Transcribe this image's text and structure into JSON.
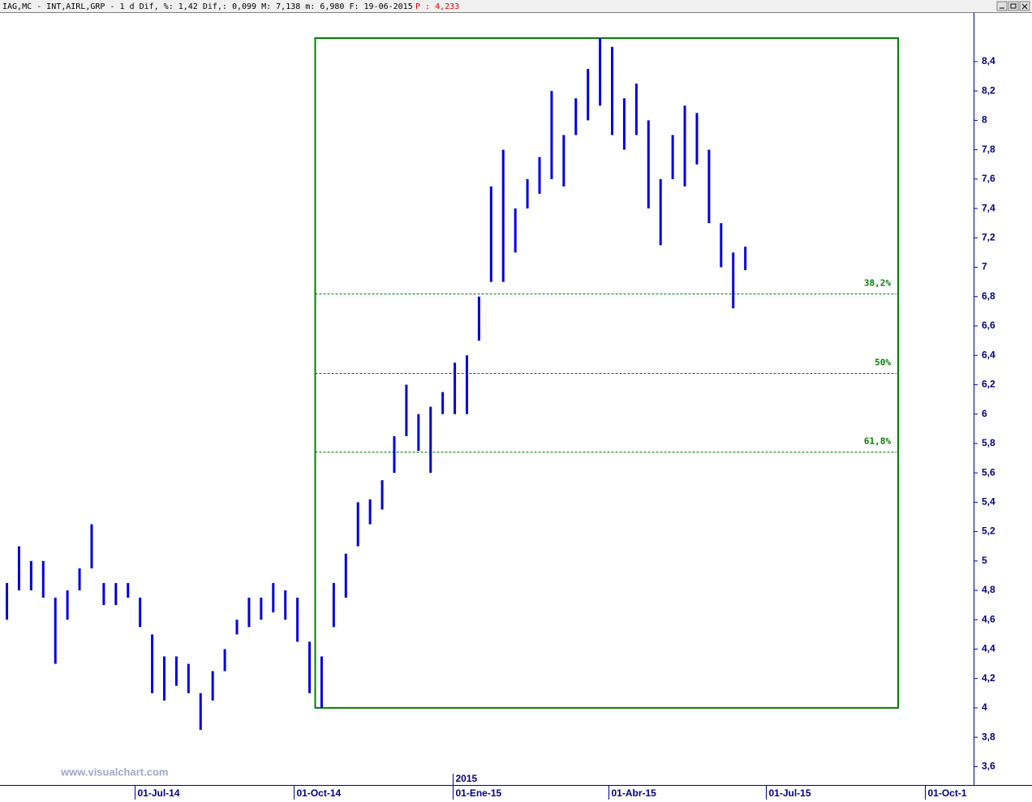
{
  "header": {
    "text": "IAG,MC - INT,AIRL,GRP -  1 d Dif, %: 1,42 Dif,: 0,099 M: 7,138 m: 6,980 F: 19-06-2015",
    "price": "P : 4,233"
  },
  "watermark": "www.visualchart.com",
  "chart_data": {
    "type": "hilo",
    "color": "#0000e0",
    "x": [
      "2014-04-18",
      "2014-04-25",
      "2014-05-02",
      "2014-05-09",
      "2014-05-16",
      "2014-05-23",
      "2014-05-30",
      "2014-06-06",
      "2014-06-13",
      "2014-06-20",
      "2014-06-27",
      "2014-07-04",
      "2014-07-11",
      "2014-07-18",
      "2014-07-25",
      "2014-08-01",
      "2014-08-08",
      "2014-08-15",
      "2014-08-22",
      "2014-08-29",
      "2014-09-05",
      "2014-09-12",
      "2014-09-19",
      "2014-09-26",
      "2014-10-03",
      "2014-10-10",
      "2014-10-17",
      "2014-10-24",
      "2014-10-31",
      "2014-11-07",
      "2014-11-14",
      "2014-11-21",
      "2014-11-28",
      "2014-12-05",
      "2014-12-12",
      "2014-12-19",
      "2014-12-26",
      "2015-01-02",
      "2015-01-09",
      "2015-01-16",
      "2015-01-23",
      "2015-01-30",
      "2015-02-06",
      "2015-02-13",
      "2015-02-20",
      "2015-02-27",
      "2015-03-06",
      "2015-03-13",
      "2015-03-20",
      "2015-03-27",
      "2015-04-03",
      "2015-04-10",
      "2015-04-17",
      "2015-04-24",
      "2015-05-01",
      "2015-05-08",
      "2015-05-15",
      "2015-05-22",
      "2015-05-29",
      "2015-06-05",
      "2015-06-12",
      "2015-06-19"
    ],
    "high": [
      4.85,
      5.1,
      5.0,
      5.0,
      4.75,
      4.8,
      4.95,
      5.25,
      4.85,
      4.85,
      4.85,
      4.75,
      4.5,
      4.35,
      4.35,
      4.3,
      4.1,
      4.25,
      4.4,
      4.6,
      4.75,
      4.75,
      4.85,
      4.8,
      4.75,
      4.45,
      4.35,
      4.85,
      5.05,
      5.4,
      5.42,
      5.55,
      5.85,
      6.2,
      6.0,
      6.05,
      6.15,
      6.35,
      6.4,
      6.8,
      7.55,
      7.8,
      7.4,
      7.6,
      7.75,
      8.2,
      7.9,
      8.15,
      8.35,
      8.56,
      8.5,
      8.15,
      8.25,
      8.0,
      7.6,
      7.9,
      8.1,
      8.05,
      7.8,
      7.3,
      7.1,
      7.14
    ],
    "low": [
      4.6,
      4.8,
      4.8,
      4.75,
      4.3,
      4.6,
      4.8,
      4.95,
      4.7,
      4.7,
      4.75,
      4.55,
      4.1,
      4.05,
      4.15,
      4.1,
      3.85,
      4.05,
      4.25,
      4.5,
      4.55,
      4.6,
      4.65,
      4.6,
      4.45,
      4.1,
      4.0,
      4.55,
      4.75,
      5.1,
      5.25,
      5.35,
      5.6,
      5.85,
      5.75,
      5.6,
      6.0,
      6.0,
      6.0,
      6.5,
      6.9,
      6.9,
      7.1,
      7.4,
      7.5,
      7.6,
      7.55,
      7.9,
      8.0,
      8.1,
      7.9,
      7.8,
      7.9,
      7.4,
      7.15,
      7.6,
      7.55,
      7.7,
      7.3,
      7.0,
      6.72,
      6.98
    ],
    "xlim": [
      "2014-04-14",
      "2015-10-29"
    ],
    "xticks": [
      {
        "value": "2014-07-01",
        "label": "01-Jul-14"
      },
      {
        "value": "2014-10-01",
        "label": "01-Oct-14"
      },
      {
        "value": "2015-01-01",
        "label": "01-Ene-15"
      },
      {
        "value": "2015-04-01",
        "label": "01-Abr-15"
      },
      {
        "value": "2015-07-01",
        "label": "01-Jul-15"
      },
      {
        "value": "2015-10-01",
        "label": "01-Oct-1"
      }
    ],
    "year_marker": {
      "value": "2015-01-01",
      "label": "2015"
    },
    "ylim": [
      3.475,
      8.72
    ],
    "yticks": [
      {
        "value": 3.6,
        "label": "3,6"
      },
      {
        "value": 3.8,
        "label": "3,8"
      },
      4,
      {
        "value": 4.2,
        "label": "4,2"
      },
      {
        "value": 4.4,
        "label": "4,4"
      },
      {
        "value": 4.6,
        "label": "4,6"
      },
      {
        "value": 4.8,
        "label": "4,8"
      },
      5,
      {
        "value": 5.2,
        "label": "5,2"
      },
      {
        "value": 5.4,
        "label": "5,4"
      },
      {
        "value": 5.6,
        "label": "5,6"
      },
      {
        "value": 5.8,
        "label": "5,8"
      },
      6,
      {
        "value": 6.2,
        "label": "6,2"
      },
      {
        "value": 6.4,
        "label": "6,4"
      },
      {
        "value": 6.6,
        "label": "6,6"
      },
      {
        "value": 6.8,
        "label": "6,8"
      },
      7,
      {
        "value": 7.2,
        "label": "7,2"
      },
      {
        "value": 7.4,
        "label": "7,4"
      },
      {
        "value": 7.6,
        "label": "7,6"
      },
      {
        "value": 7.8,
        "label": "7,8"
      },
      8,
      {
        "value": 8.2,
        "label": "8,2"
      },
      {
        "value": 8.4,
        "label": "8,4"
      }
    ],
    "fibonacci": {
      "start": "2014-10-13",
      "low": 4.0,
      "high": 8.56,
      "color": "#008000",
      "levels": [
        {
          "value": 38.2,
          "label": "38,2%"
        },
        {
          "value": 50,
          "label": "50%"
        },
        {
          "value": 61.8,
          "label": "61,8%"
        }
      ]
    }
  }
}
